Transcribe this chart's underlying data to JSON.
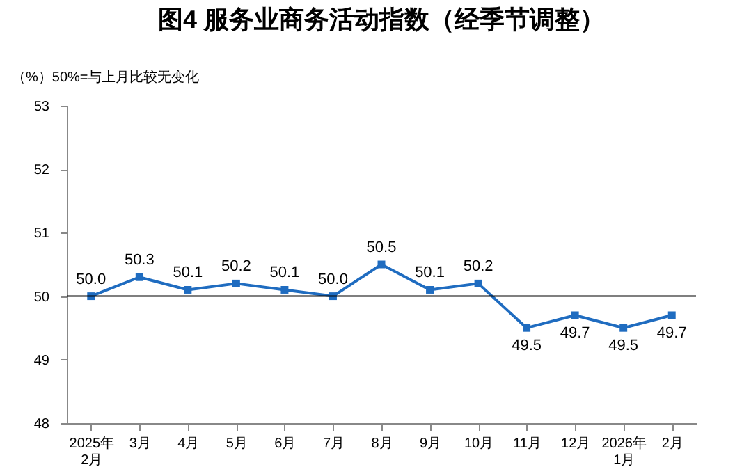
{
  "chart_data": {
    "type": "line",
    "title": "图4  服务业商务活动指数（经季节调整）",
    "ylabel": "（%）50%=与上月比较无变化",
    "categories": [
      "2025年\n2月",
      "3月",
      "4月",
      "5月",
      "6月",
      "7月",
      "8月",
      "9月",
      "10月",
      "11月",
      "12月",
      "2026年\n1月",
      "2月"
    ],
    "series": [
      {
        "color": "#1f6cc0",
        "values": [
          50.0,
          50.3,
          50.1,
          50.2,
          50.1,
          50.0,
          50.5,
          50.1,
          50.2,
          49.5,
          49.7,
          49.5,
          49.7
        ],
        "value_labels": [
          "50.0",
          "50.3",
          "50.1",
          "50.2",
          "50.1",
          "50.0",
          "50.5",
          "50.1",
          "50.2",
          "49.5",
          "49.7",
          "49.5",
          "49.7"
        ]
      }
    ],
    "ylim": [
      48,
      53
    ],
    "yticks": [
      48,
      49,
      50,
      51,
      52,
      53
    ],
    "grid": false,
    "marker": "square",
    "line_style": "solid",
    "ref_lines": [
      {
        "axis": "y",
        "value": 50,
        "label": null,
        "color": "#000000"
      }
    ]
  }
}
